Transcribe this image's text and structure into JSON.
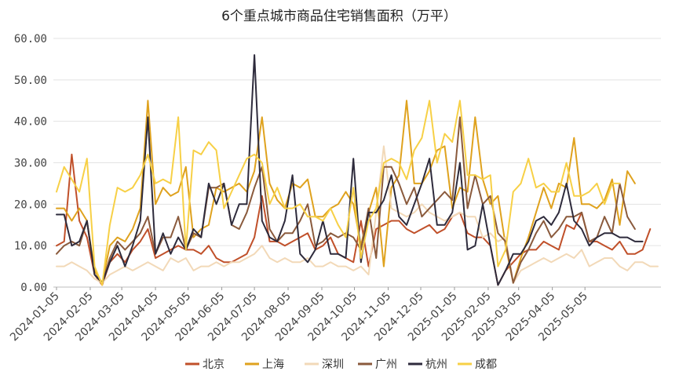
{
  "chart_data": {
    "type": "line",
    "title": "6个重点城市商品住宅销售面积（万平）",
    "xlabel": "",
    "ylabel": "",
    "ylim": [
      0,
      60
    ],
    "yticks": [
      "0.00",
      "10.00",
      "20.00",
      "30.00",
      "40.00",
      "50.00",
      "60.00"
    ],
    "xticks": [
      "2024-01-05",
      "2024-02-05",
      "2024-03-05",
      "2024-04-05",
      "2024-05-05",
      "2024-06-05",
      "2024-07-05",
      "2024-08-05",
      "2024-09-05",
      "2024-10-05",
      "2024-11-05",
      "2024-12-05",
      "2025-01-05",
      "2025-02-05",
      "2025-03-05",
      "2025-04-05",
      "2025-05-05"
    ],
    "grid": "horizontal",
    "legend_position": "bottom",
    "x_start": "2024-01-05",
    "x_step_weeks": 1,
    "series": [
      {
        "name": "北京",
        "color": "#C0502A",
        "values": [
          10,
          11,
          32,
          16,
          12,
          3,
          0.5,
          6,
          8,
          6,
          9,
          11,
          14,
          7,
          8,
          9,
          10,
          9,
          9,
          8,
          10,
          7,
          6,
          6,
          7,
          8,
          12,
          22,
          11,
          11,
          10,
          11,
          12,
          13,
          9,
          10,
          12,
          8,
          7,
          6,
          16,
          5,
          14,
          15,
          16,
          16,
          14,
          13,
          14,
          15,
          13,
          14,
          17,
          18,
          13,
          12,
          12,
          10,
          0.5,
          4,
          6,
          8,
          9,
          9,
          11,
          10,
          9,
          15,
          14,
          18,
          11,
          11,
          10,
          9,
          11,
          8,
          8,
          9,
          14
        ]
      },
      {
        "name": "上海",
        "color": "#DFA21E",
        "values": [
          19,
          19,
          16,
          19,
          16,
          4,
          1,
          10,
          12,
          11,
          14,
          19,
          45,
          20,
          24,
          22,
          23,
          29,
          12,
          14,
          15,
          24,
          23,
          24,
          25,
          23,
          28,
          41,
          25,
          21,
          19,
          25,
          24,
          26,
          17,
          17,
          19,
          20,
          23,
          20,
          10,
          18,
          24,
          5,
          24,
          27,
          45,
          25,
          25,
          28,
          33,
          34,
          19,
          24,
          23,
          41,
          26,
          20,
          22,
          10,
          1,
          7,
          12,
          18,
          24,
          19,
          25,
          24,
          36,
          20,
          20,
          19,
          21,
          26,
          15,
          28,
          25
        ]
      },
      {
        "name": "深圳",
        "color": "#F2D9B8",
        "values": [
          5,
          5,
          6,
          5,
          4,
          2,
          1,
          3,
          4,
          5,
          4,
          5,
          6,
          5,
          4,
          7,
          6,
          7,
          4,
          5,
          5,
          6,
          5,
          6,
          6,
          7,
          8,
          10,
          7,
          6,
          7,
          6,
          6,
          7,
          5,
          5,
          6,
          5,
          5,
          4,
          5,
          3,
          18,
          34,
          19,
          18,
          17,
          18,
          20,
          18,
          17,
          16,
          17,
          18,
          17,
          17,
          12,
          13,
          11,
          12,
          1,
          4,
          5,
          6,
          7,
          6,
          7,
          8,
          7,
          9,
          5,
          6,
          7,
          7,
          5,
          4,
          6,
          6,
          5,
          5
        ]
      },
      {
        "name": "广州",
        "color": "#8A5A3C",
        "values": [
          8,
          10,
          11,
          10,
          16,
          3,
          1,
          7,
          11,
          9,
          11,
          13,
          17,
          8,
          12,
          12,
          17,
          9,
          13,
          12,
          24,
          24,
          25,
          15,
          14,
          18,
          24,
          29,
          14,
          11,
          13,
          13,
          16,
          20,
          10,
          11,
          13,
          12,
          13,
          12,
          9,
          19,
          7,
          29,
          29,
          25,
          20,
          24,
          17,
          19,
          21,
          23,
          21,
          41,
          19,
          27,
          20,
          22,
          13,
          11,
          1,
          6,
          9,
          13,
          16,
          12,
          14,
          17,
          17,
          18,
          11,
          12,
          17,
          13,
          25,
          17,
          14
        ]
      },
      {
        "name": "杭州",
        "color": "#2E2B3C",
        "values": [
          17.5,
          17.5,
          10,
          11,
          16,
          3,
          1,
          6,
          10,
          5,
          10,
          16,
          41,
          8,
          13,
          8,
          12,
          9,
          14,
          12,
          25,
          20,
          25,
          15,
          20,
          20,
          56,
          16,
          12,
          11,
          16,
          27,
          8,
          6,
          9,
          16,
          8,
          8,
          7,
          31,
          6,
          18,
          18,
          21,
          27,
          17,
          15,
          20,
          25,
          31,
          15,
          15,
          18,
          30,
          9,
          10,
          20,
          10,
          0.5,
          4,
          8,
          8,
          11,
          16,
          17,
          15,
          18,
          25,
          16,
          14,
          10,
          12,
          13,
          13,
          12,
          12,
          11,
          11
        ]
      },
      {
        "name": "成都",
        "color": "#F7D046",
        "values": [
          23,
          29,
          26,
          23,
          31,
          5,
          0.5,
          15,
          24,
          23,
          24,
          27,
          32,
          25,
          26,
          25,
          41,
          9,
          33,
          32,
          35,
          33,
          19,
          23,
          27,
          31,
          32,
          30,
          20,
          24,
          19,
          19,
          20,
          17,
          17,
          16,
          19,
          15,
          12,
          24,
          7,
          16,
          19,
          30,
          31,
          30,
          26,
          33,
          36,
          45,
          30,
          37,
          35,
          45,
          27,
          27,
          26,
          27,
          5,
          9,
          23,
          25,
          31,
          24,
          25,
          23,
          23,
          30,
          22,
          22,
          23,
          25,
          20,
          25,
          25
        ]
      }
    ]
  }
}
